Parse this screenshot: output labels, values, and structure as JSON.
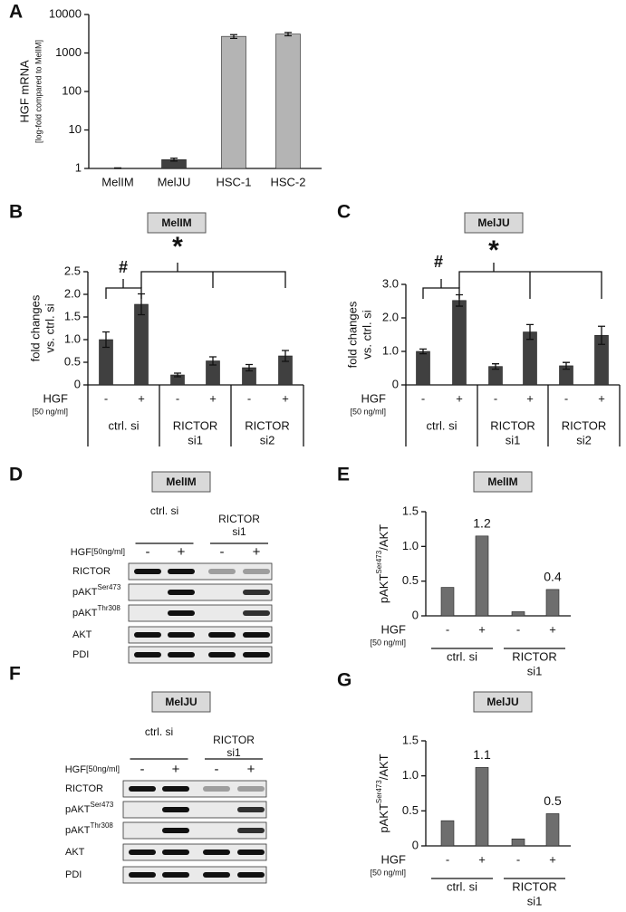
{
  "chart_data": [
    {
      "type": "bar",
      "panel_label": "A",
      "y_label": "HGF mRNA",
      "y_sublabel": "[log-fold compared to MelIM]",
      "categories": [
        "MelIM",
        "MelJU",
        "HSC-1",
        "HSC-2"
      ],
      "values": [
        1.0,
        1.7,
        2700,
        3100
      ],
      "errors": [
        0.03,
        0.15,
        300,
        300
      ],
      "colors": [
        "#404040",
        "#404040",
        "#b4b4b4",
        "#b4b4b4"
      ],
      "log_scale": true,
      "ylim": [
        1,
        10000
      ],
      "yticks": [
        1,
        10,
        100,
        1000,
        10000
      ]
    },
    {
      "type": "bar",
      "panel_label": "B",
      "title": "MelIM",
      "y_label": [
        "fold changes",
        "vs. ctrl. si"
      ],
      "x_label": "HGF",
      "x_sublabel": "[50 ng/ml]",
      "categories": [
        "-",
        "+",
        "-",
        "+",
        "-",
        "+"
      ],
      "groups": [
        [
          "ctrl. si"
        ],
        [
          "RICTOR",
          "si1"
        ],
        [
          "RICTOR",
          "si2"
        ]
      ],
      "values": [
        1.0,
        1.78,
        0.22,
        0.53,
        0.38,
        0.64
      ],
      "errors": [
        0.17,
        0.23,
        0.04,
        0.09,
        0.07,
        0.12
      ],
      "color": "#404040",
      "ylim": [
        0,
        2.5
      ],
      "yticks": [
        0,
        0.5,
        {
          "value": 1,
          "label": "1.0"
        },
        1.5,
        {
          "value": 2,
          "label": "2.0"
        },
        2.5
      ],
      "annotations": [
        "#",
        "*"
      ]
    },
    {
      "type": "bar",
      "panel_label": "C",
      "title": "MelJU",
      "y_label": [
        "fold changes",
        "vs. ctrl. si"
      ],
      "x_label": "HGF",
      "x_sublabel": "[50 ng/ml]",
      "categories": [
        "-",
        "+",
        "-",
        "+",
        "-",
        "+"
      ],
      "groups": [
        [
          "ctrl. si"
        ],
        [
          "RICTOR",
          "si1"
        ],
        [
          "RICTOR",
          "si2"
        ]
      ],
      "values": [
        1.0,
        2.52,
        0.55,
        1.58,
        0.57,
        1.48
      ],
      "errors": [
        0.07,
        0.17,
        0.08,
        0.22,
        0.1,
        0.27
      ],
      "color": "#404040",
      "ylim": [
        0,
        3
      ],
      "yticks": [
        0,
        {
          "value": 1,
          "label": "1.0"
        },
        {
          "value": 2,
          "label": "2.0"
        },
        {
          "value": 3,
          "label": "3.0"
        }
      ],
      "annotations": [
        "#",
        "*"
      ]
    },
    {
      "type": "bar",
      "panel_label": "E",
      "title": "MelIM",
      "y_label": {
        "text": "pAKT",
        "sup": "Ser473",
        "rest": "/AKT"
      },
      "x_label": "HGF",
      "x_sublabel": "[50 ng/ml]",
      "categories": [
        "-",
        "+",
        "-",
        "+"
      ],
      "groups": [
        [
          "ctrl. si"
        ],
        [
          "RICTOR",
          "si1"
        ]
      ],
      "values": [
        0.41,
        1.15,
        0.06,
        0.38
      ],
      "value_labels": [
        null,
        "1.2",
        null,
        "0.4"
      ],
      "color": "#6e6e6e",
      "ylim": [
        0,
        1.5
      ],
      "yticks": [
        0,
        0.5,
        {
          "value": 1,
          "label": "1.0"
        },
        1.5
      ]
    },
    {
      "type": "bar",
      "panel_label": "G",
      "title": "MelJU",
      "y_label": {
        "text": "pAKT",
        "sup": "Ser473",
        "rest": "/AKT"
      },
      "x_label": "HGF",
      "x_sublabel": "[50 ng/ml]",
      "categories": [
        "-",
        "+",
        "-",
        "+"
      ],
      "groups": [
        [
          "ctrl. si"
        ],
        [
          "RICTOR",
          "si1"
        ]
      ],
      "values": [
        0.36,
        1.12,
        0.1,
        0.46
      ],
      "value_labels": [
        null,
        "1.1",
        null,
        "0.5"
      ],
      "color": "#6e6e6e",
      "ylim": [
        0,
        1.5
      ],
      "yticks": [
        0,
        0.5,
        {
          "value": 1,
          "label": "1.0"
        },
        1.5
      ]
    }
  ],
  "blots": [
    {
      "panel_label": "D",
      "title": "MelIM",
      "groups": [
        [
          "ctrl. si"
        ],
        [
          "RICTOR",
          "si1"
        ]
      ],
      "treatment": "HGF",
      "treatment_sublabel": "[50ng/ml]",
      "lanes": [
        "-",
        "+",
        "-",
        "+"
      ],
      "rows": [
        {
          "label": "RICTOR"
        },
        {
          "label": "pAKT",
          "sup": "Ser473"
        },
        {
          "label": "pAKT",
          "sup": "Thr308"
        },
        {
          "label": "AKT"
        },
        {
          "label": "PDI"
        }
      ]
    },
    {
      "panel_label": "F",
      "title": "MelJU",
      "groups": [
        [
          "ctrl. si"
        ],
        [
          "RICTOR",
          "si1"
        ]
      ],
      "treatment": "HGF",
      "treatment_sublabel": "[50ng/ml]",
      "lanes": [
        "-",
        "+",
        "-",
        "+"
      ],
      "rows": [
        {
          "label": "RICTOR"
        },
        {
          "label": "pAKT",
          "sup": "Ser473"
        },
        {
          "label": "pAKT",
          "sup": "Thr308"
        },
        {
          "label": "AKT"
        },
        {
          "label": "PDI"
        }
      ]
    }
  ]
}
